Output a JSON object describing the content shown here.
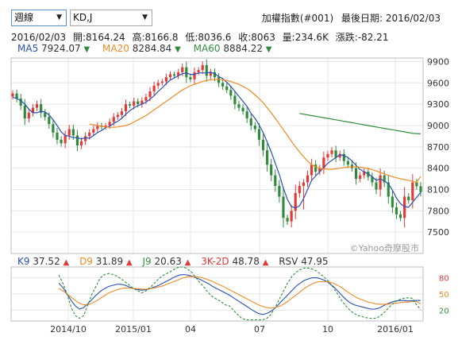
{
  "controls": {
    "period": "週線",
    "indicator": "KD,J"
  },
  "header": {
    "index_name": "加權指數(#001)",
    "last_date": "最後日期: 2016/02/03"
  },
  "quote": {
    "date": "2016/02/03",
    "open": "開:8164.24",
    "high": "高:8166.8",
    "low": "低:8036.6",
    "close": "收:8063",
    "volume": "量:234.6K",
    "change": "漲跌:-82.21"
  },
  "legend": {
    "ma5": {
      "label": "MA5",
      "value": "7924.07",
      "color": "#2a4fb5"
    },
    "ma20": {
      "label": "MA20",
      "value": "8284.84",
      "color": "#f08a24"
    },
    "ma60": {
      "label": "MA60",
      "value": "8884.22",
      "color": "#2f8f3c"
    }
  },
  "indicators": {
    "k9": {
      "label": "K9",
      "value": "37.52",
      "color": "#2a4fb5"
    },
    "d9": {
      "label": "D9",
      "value": "31.89",
      "color": "#f08a24"
    },
    "j9": {
      "label": "J9",
      "value": "20.63",
      "color": "#2f8f3c"
    },
    "k3_2d": {
      "label": "3K-2D",
      "value": "48.78",
      "color": "#e53935"
    },
    "rsv": {
      "label": "RSV",
      "value": "47.95",
      "color": "#222"
    }
  },
  "watermark": "©Yahoo奇摩股市",
  "colors": {
    "up": "#e53935",
    "down": "#2e8b3a",
    "grid": "#e6e6e6"
  },
  "chart_data": [
    {
      "type": "candlestick",
      "title": "",
      "ylim": [
        7200,
        9950
      ],
      "yticks": [
        7500,
        7800,
        8100,
        8400,
        8700,
        9000,
        9300,
        9600,
        9900
      ],
      "xticks": [
        "2014/10",
        "2015/01",
        "04",
        "07",
        "10",
        "2016/01"
      ],
      "series": [
        {
          "name": "price",
          "close": [
            9450,
            9380,
            9280,
            9100,
            9180,
            9250,
            9300,
            9180,
            9120,
            9020,
            8900,
            8800,
            8750,
            8860,
            8950,
            8860,
            8720,
            8780,
            8850,
            8900,
            8950,
            9000,
            8980,
            9000,
            9050,
            9120,
            9150,
            9200,
            9300,
            9280,
            9340,
            9300,
            9350,
            9400,
            9480,
            9560,
            9600,
            9620,
            9680,
            9720,
            9700,
            9750,
            9820,
            9680,
            9650,
            9750,
            9780,
            9850,
            9700,
            9750,
            9680,
            9600,
            9550,
            9500,
            9420,
            9300,
            9250,
            9200,
            9100,
            9000,
            8950,
            8800,
            8650,
            8450,
            8300,
            8150,
            8000,
            7700,
            7650,
            7800,
            8050,
            8150,
            8200,
            8300,
            8450,
            8350,
            8400,
            8550,
            8600,
            8650,
            8550,
            8600,
            8500,
            8450,
            8400,
            8250,
            8300,
            8350,
            8280,
            8200,
            8100,
            8300,
            8200,
            8000,
            7850,
            7750,
            7700,
            8000,
            7950,
            8200,
            8145,
            8063
          ]
        },
        {
          "name": "MA5",
          "values": [
            9400,
            9380,
            9350,
            9300,
            9230,
            9180,
            9180,
            9200,
            9190,
            9150,
            9080,
            9000,
            8910,
            8860,
            8850,
            8830,
            8830,
            8810,
            8830,
            8820,
            8860,
            8900,
            8930,
            8970,
            8990,
            9030,
            9060,
            9100,
            9160,
            9210,
            9250,
            9280,
            9300,
            9330,
            9370,
            9420,
            9480,
            9530,
            9590,
            9640,
            9670,
            9700,
            9730,
            9740,
            9720,
            9720,
            9740,
            9740,
            9740,
            9750,
            9730,
            9690,
            9660,
            9610,
            9550,
            9480,
            9410,
            9340,
            9270,
            9170,
            9100,
            9010,
            8900,
            8770,
            8630,
            8470,
            8310,
            8120,
            7960,
            7860,
            7840,
            7870,
            7970,
            8100,
            8230,
            8290,
            8350,
            8410,
            8470,
            8510,
            8550,
            8590,
            8580,
            8550,
            8500,
            8440,
            8380,
            8350,
            8320,
            8280,
            8230,
            8250,
            8220,
            8180,
            8090,
            7980,
            7900,
            7860,
            7850,
            7920,
            7990,
            8060
          ]
        },
        {
          "name": "MA20",
          "values": [
            null,
            null,
            null,
            null,
            null,
            null,
            null,
            null,
            null,
            null,
            null,
            null,
            null,
            null,
            null,
            null,
            null,
            null,
            null,
            9020,
            9010,
            9000,
            8990,
            8980,
            8975,
            8975,
            8980,
            8990,
            9000,
            9020,
            9050,
            9080,
            9110,
            9140,
            9180,
            9220,
            9260,
            9300,
            9340,
            9380,
            9420,
            9460,
            9500,
            9530,
            9560,
            9580,
            9600,
            9620,
            9635,
            9645,
            9650,
            9650,
            9645,
            9635,
            9620,
            9600,
            9580,
            9550,
            9520,
            9480,
            9430,
            9380,
            9320,
            9250,
            9180,
            9100,
            9020,
            8940,
            8860,
            8780,
            8700,
            8630,
            8560,
            8500,
            8450,
            8420,
            8400,
            8390,
            8385,
            8385,
            8390,
            8400,
            8410,
            8415,
            8420,
            8420,
            8415,
            8405,
            8395,
            8380,
            8360,
            8340,
            8320,
            8300,
            8280,
            8265,
            8250,
            8240,
            8230,
            8215,
            8200,
            8285
          ]
        },
        {
          "name": "MA60",
          "values": [
            null,
            null,
            null,
            null,
            null,
            null,
            null,
            null,
            null,
            null,
            null,
            null,
            null,
            null,
            null,
            null,
            null,
            null,
            null,
            null,
            null,
            null,
            null,
            null,
            null,
            null,
            null,
            null,
            null,
            null,
            null,
            null,
            null,
            null,
            null,
            null,
            null,
            null,
            null,
            null,
            null,
            null,
            null,
            null,
            null,
            null,
            null,
            null,
            null,
            null,
            null,
            null,
            null,
            null,
            null,
            null,
            null,
            null,
            null,
            null,
            null,
            null,
            null,
            null,
            null,
            null,
            null,
            null,
            null,
            null,
            null,
            9170,
            9160,
            9150,
            9140,
            9130,
            9120,
            9110,
            9100,
            9090,
            9080,
            9070,
            9060,
            9050,
            9040,
            9030,
            9020,
            9010,
            9000,
            8990,
            8980,
            8970,
            8960,
            8950,
            8940,
            8930,
            8920,
            8910,
            8900,
            8890,
            8887,
            8884
          ]
        }
      ]
    },
    {
      "type": "line",
      "title": "",
      "ylim": [
        0,
        100
      ],
      "yticks": [
        20,
        50,
        80
      ],
      "series": [
        {
          "name": "K9",
          "values": [
            70,
            62,
            50,
            38,
            28,
            22,
            25,
            32,
            40,
            48,
            55,
            60,
            64,
            66,
            68,
            68,
            66,
            63,
            60,
            58,
            57,
            58,
            60,
            63,
            66,
            70,
            74,
            78,
            82,
            85,
            86,
            85,
            83,
            80,
            77,
            73,
            69,
            64,
            60,
            56,
            52,
            48,
            43,
            38,
            33,
            28,
            23,
            18,
            14,
            12,
            14,
            18,
            24,
            32,
            40,
            48,
            56,
            64,
            70,
            75,
            78,
            80,
            80,
            78,
            75,
            70,
            64,
            56,
            48,
            40,
            34,
            30,
            28,
            26,
            24,
            22,
            22,
            24,
            28,
            32,
            35,
            37,
            38,
            38,
            37,
            38,
            38,
            38
          ]
        },
        {
          "name": "D9",
          "values": [
            60,
            56,
            50,
            44,
            38,
            33,
            30,
            30,
            33,
            37,
            42,
            47,
            52,
            55,
            58,
            60,
            61,
            61,
            60,
            60,
            59,
            59,
            60,
            61,
            63,
            65,
            68,
            71,
            74,
            77,
            80,
            82,
            82,
            82,
            81,
            79,
            76,
            73,
            69,
            66,
            62,
            58,
            54,
            50,
            46,
            42,
            38,
            34,
            30,
            27,
            25,
            24,
            25,
            27,
            31,
            36,
            42,
            48,
            54,
            60,
            65,
            69,
            72,
            73,
            73,
            72,
            70,
            66,
            62,
            56,
            51,
            46,
            42,
            39,
            36,
            34,
            32,
            31,
            31,
            31,
            32,
            33,
            34,
            35,
            35,
            36,
            36,
            32
          ]
        },
        {
          "name": "J9",
          "values": [
            85,
            70,
            50,
            25,
            10,
            5,
            10,
            30,
            50,
            65,
            80,
            86,
            88,
            86,
            83,
            78,
            72,
            66,
            60,
            56,
            52,
            56,
            62,
            70,
            78,
            84,
            88,
            92,
            97,
            100,
            100,
            96,
            90,
            80,
            70,
            62,
            52,
            45,
            40,
            36,
            30,
            28,
            20,
            12,
            5,
            2,
            2,
            2,
            2,
            2,
            5,
            12,
            25,
            40,
            55,
            70,
            82,
            90,
            95,
            98,
            98,
            96,
            92,
            86,
            80,
            72,
            62,
            50,
            38,
            28,
            20,
            14,
            10,
            8,
            6,
            5,
            5,
            8,
            14,
            22,
            30,
            36,
            40,
            42,
            43,
            42,
            30,
            21
          ]
        }
      ]
    }
  ]
}
